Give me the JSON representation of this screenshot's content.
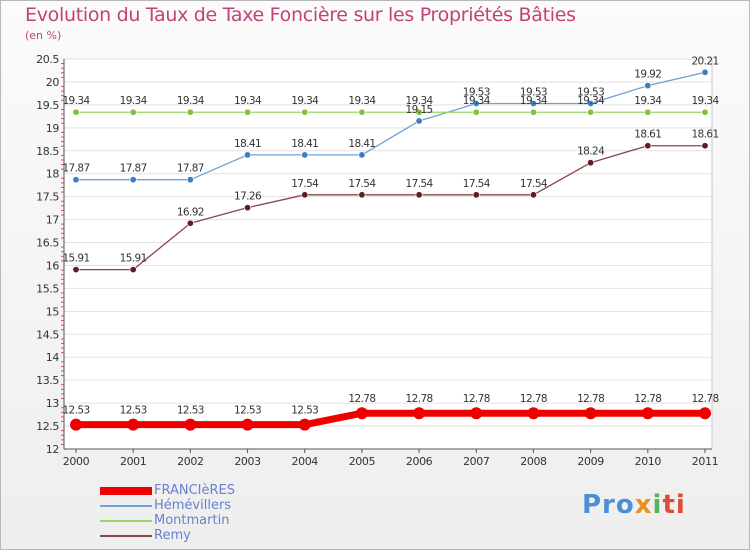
{
  "title": "Evolution du Taux de Taxe Foncière sur les Propriétés Bâties",
  "unit_label": "(en %)",
  "logo": {
    "text": "Proxiti",
    "parts": [
      "Pro",
      "x",
      "i",
      "ti"
    ]
  },
  "chart_data": {
    "type": "line",
    "title": "Evolution du Taux de Taxe Foncière sur les Propriétés Bâties",
    "ylabel": "(en %)",
    "xlabel": "",
    "ylim": [
      12,
      20.5
    ],
    "yticks": [
      "12",
      "12.5",
      "13",
      "13.5",
      "14",
      "14.5",
      "15",
      "15.5",
      "16",
      "16.5",
      "17",
      "17.5",
      "18",
      "18.5",
      "19",
      "19.5",
      "20",
      "20.5"
    ],
    "x": [
      2000,
      2001,
      2002,
      2003,
      2004,
      2005,
      2006,
      2007,
      2008,
      2009,
      2010,
      2011
    ],
    "x_labels": [
      "2000",
      "2001",
      "2002",
      "2003",
      "2004",
      "2005",
      "2006",
      "2007",
      "2008",
      "2009",
      "2010",
      "2011"
    ],
    "legend_position": "bottom-left",
    "series": [
      {
        "name": "FRANCIèRES",
        "color": "#ee0000",
        "emphasis": true,
        "values": [
          12.53,
          12.53,
          12.53,
          12.53,
          12.53,
          12.78,
          12.78,
          12.78,
          12.78,
          12.78,
          12.78,
          12.78
        ],
        "labels": [
          "12.53",
          "12.53",
          "12.53",
          "12.53",
          "12.53",
          "12.78",
          "12.78",
          "12.78",
          "12.78",
          "12.78",
          "12.78",
          "12.78"
        ]
      },
      {
        "name": "Hémévillers",
        "color": "#6fa3d6",
        "marker": "#3d7fc0",
        "values": [
          17.87,
          17.87,
          17.87,
          18.41,
          18.41,
          18.41,
          19.15,
          19.53,
          19.53,
          19.53,
          19.92,
          20.21
        ],
        "labels": [
          "17.87",
          "17.87",
          "17.87",
          "18.41",
          "18.41",
          "18.41",
          "19.15",
          "19.53",
          "19.53",
          "19.53",
          "19.92",
          "20.21"
        ]
      },
      {
        "name": "Montmartin",
        "color": "#9ad36a",
        "marker": "#7cc33f",
        "values": [
          19.34,
          19.34,
          19.34,
          19.34,
          19.34,
          19.34,
          19.34,
          19.34,
          19.34,
          19.34,
          19.34,
          19.34
        ],
        "labels": [
          "19.34",
          "19.34",
          "19.34",
          "19.34",
          "19.34",
          "19.34",
          "19.34",
          "19.34",
          "19.34",
          "19.34",
          "19.34",
          "19.34"
        ]
      },
      {
        "name": "Remy",
        "color": "#8a4448",
        "marker": "#5e1e24",
        "values": [
          15.91,
          15.91,
          16.92,
          17.26,
          17.54,
          17.54,
          17.54,
          17.54,
          17.54,
          18.24,
          18.61,
          18.61
        ],
        "labels": [
          "15.91",
          "15.91",
          "16.92",
          "17.26",
          "17.54",
          "17.54",
          "17.54",
          "17.54",
          "17.54",
          "18.24",
          "18.61",
          "18.61"
        ]
      }
    ]
  }
}
